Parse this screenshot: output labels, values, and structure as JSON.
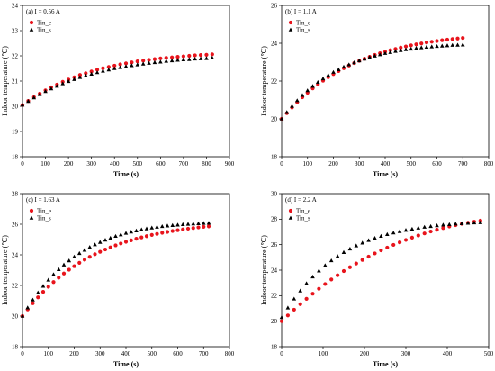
{
  "chart_data": [
    {
      "type": "scatter",
      "title": "(a) I = 0.56 A",
      "xlabel": "Time (s)",
      "ylabel": "Indoor temperature (℃)",
      "xlim": [
        0,
        900
      ],
      "ylim": [
        18,
        24
      ],
      "xticks": [
        0,
        100,
        200,
        300,
        400,
        500,
        600,
        700,
        800,
        900
      ],
      "yticks": [
        18,
        19,
        20,
        21,
        22,
        23,
        24
      ],
      "legend_position": "top-left",
      "x": [
        0,
        25,
        50,
        75,
        100,
        125,
        150,
        175,
        200,
        225,
        250,
        275,
        300,
        325,
        350,
        375,
        400,
        425,
        450,
        475,
        500,
        525,
        550,
        575,
        600,
        625,
        650,
        675,
        700,
        725,
        750,
        775,
        800,
        825
      ],
      "series": [
        {
          "name": "Tin_e",
          "color": "#e8141c",
          "marker": "circle",
          "values": [
            20.05,
            20.21,
            20.36,
            20.5,
            20.63,
            20.75,
            20.86,
            20.97,
            21.06,
            21.15,
            21.24,
            21.31,
            21.38,
            21.45,
            21.51,
            21.56,
            21.61,
            21.66,
            21.7,
            21.74,
            21.78,
            21.81,
            21.84,
            21.87,
            21.9,
            21.92,
            21.94,
            21.96,
            21.98,
            22.0,
            22.02,
            22.03,
            22.04,
            22.06
          ]
        },
        {
          "name": "Tin_s",
          "color": "#000000",
          "marker": "triangle",
          "values": [
            20.05,
            20.2,
            20.34,
            20.47,
            20.59,
            20.7,
            20.8,
            20.9,
            20.99,
            21.07,
            21.15,
            21.22,
            21.28,
            21.34,
            21.4,
            21.45,
            21.5,
            21.54,
            21.58,
            21.62,
            21.65,
            21.68,
            21.71,
            21.74,
            21.76,
            21.79,
            21.81,
            21.83,
            21.85,
            21.86,
            21.88,
            21.89,
            21.9,
            21.92
          ]
        }
      ]
    },
    {
      "type": "scatter",
      "title": "(b) I = 1.1 A",
      "xlabel": "Time (s)",
      "ylabel": "Indoor temperature (℃)",
      "xlim": [
        0,
        800
      ],
      "ylim": [
        18,
        26
      ],
      "xticks": [
        0,
        100,
        200,
        300,
        400,
        500,
        600,
        700,
        800
      ],
      "yticks": [
        18,
        20,
        22,
        24,
        26
      ],
      "legend_position": "top-left",
      "x": [
        0,
        20,
        40,
        60,
        80,
        100,
        120,
        140,
        160,
        180,
        200,
        220,
        240,
        260,
        280,
        300,
        320,
        340,
        360,
        380,
        400,
        420,
        440,
        460,
        480,
        500,
        520,
        540,
        560,
        580,
        600,
        620,
        640,
        660,
        680,
        700
      ],
      "series": [
        {
          "name": "Tin_e",
          "color": "#e8141c",
          "marker": "circle",
          "values": [
            20.0,
            20.3,
            20.6,
            20.88,
            21.14,
            21.38,
            21.61,
            21.82,
            22.02,
            22.2,
            22.37,
            22.53,
            22.68,
            22.82,
            22.95,
            23.07,
            23.18,
            23.28,
            23.38,
            23.47,
            23.55,
            23.63,
            23.7,
            23.77,
            23.83,
            23.89,
            23.94,
            23.99,
            24.04,
            24.08,
            24.12,
            24.16,
            24.19,
            24.22,
            24.25,
            24.28
          ]
        },
        {
          "name": "Tin_s",
          "color": "#000000",
          "marker": "triangle",
          "values": [
            20.0,
            20.35,
            20.67,
            20.97,
            21.25,
            21.5,
            21.73,
            21.94,
            22.13,
            22.31,
            22.47,
            22.61,
            22.75,
            22.87,
            22.98,
            23.08,
            23.17,
            23.26,
            23.33,
            23.4,
            23.47,
            23.52,
            23.58,
            23.62,
            23.67,
            23.7,
            23.74,
            23.77,
            23.8,
            23.82,
            23.84,
            23.86,
            23.88,
            23.9,
            23.91,
            23.92
          ]
        }
      ]
    },
    {
      "type": "scatter",
      "title": "(c) I = 1.63 A",
      "xlabel": "Time (s)",
      "ylabel": "Indoor temperature (℃)",
      "xlim": [
        0,
        800
      ],
      "ylim": [
        18,
        28
      ],
      "xticks": [
        0,
        100,
        200,
        300,
        400,
        500,
        600,
        700,
        800
      ],
      "yticks": [
        18,
        20,
        22,
        24,
        26,
        28
      ],
      "legend_position": "top-left",
      "x": [
        0,
        20,
        40,
        60,
        80,
        100,
        120,
        140,
        160,
        180,
        200,
        220,
        240,
        260,
        280,
        300,
        320,
        340,
        360,
        380,
        400,
        420,
        440,
        460,
        480,
        500,
        520,
        540,
        560,
        580,
        600,
        620,
        640,
        660,
        680,
        700,
        720
      ],
      "series": [
        {
          "name": "Tin_e",
          "color": "#e8141c",
          "marker": "circle",
          "values": [
            20.0,
            20.43,
            20.84,
            21.22,
            21.58,
            21.91,
            22.22,
            22.51,
            22.78,
            23.03,
            23.26,
            23.48,
            23.68,
            23.87,
            24.04,
            24.2,
            24.35,
            24.49,
            24.62,
            24.74,
            24.85,
            24.95,
            25.05,
            25.14,
            25.22,
            25.3,
            25.37,
            25.44,
            25.5,
            25.56,
            25.61,
            25.66,
            25.71,
            25.75,
            25.79,
            25.83,
            25.86
          ]
        },
        {
          "name": "Tin_s",
          "color": "#000000",
          "marker": "triangle",
          "values": [
            20.0,
            20.55,
            21.06,
            21.53,
            21.96,
            22.36,
            22.72,
            23.05,
            23.35,
            23.62,
            23.87,
            24.1,
            24.31,
            24.5,
            24.67,
            24.83,
            24.97,
            25.1,
            25.22,
            25.32,
            25.42,
            25.5,
            25.58,
            25.65,
            25.71,
            25.77,
            25.82,
            25.86,
            25.9,
            25.93,
            25.96,
            25.99,
            26.01,
            26.03,
            26.05,
            26.07,
            26.08
          ]
        }
      ]
    },
    {
      "type": "scatter",
      "title": "(d) I = 2.2 A",
      "xlabel": "Time (s)",
      "ylabel": "Indoor temperature (℃)",
      "xlim": [
        0,
        500
      ],
      "ylim": [
        18,
        30
      ],
      "xticks": [
        0,
        100,
        200,
        300,
        400,
        500
      ],
      "yticks": [
        18,
        20,
        22,
        24,
        26,
        28,
        30
      ],
      "legend_position": "top-left",
      "x": [
        0,
        15,
        30,
        45,
        60,
        75,
        90,
        105,
        120,
        135,
        150,
        165,
        180,
        195,
        210,
        225,
        240,
        255,
        270,
        285,
        300,
        315,
        330,
        345,
        360,
        375,
        390,
        405,
        420,
        435,
        450,
        465,
        480
      ],
      "series": [
        {
          "name": "Tin_e",
          "color": "#e8141c",
          "marker": "circle",
          "values": [
            20.0,
            20.45,
            20.9,
            21.33,
            21.75,
            22.15,
            22.54,
            22.91,
            23.27,
            23.6,
            23.93,
            24.23,
            24.52,
            24.8,
            25.06,
            25.31,
            25.55,
            25.77,
            25.98,
            26.18,
            26.37,
            26.55,
            26.72,
            26.88,
            27.03,
            27.17,
            27.3,
            27.42,
            27.53,
            27.63,
            27.72,
            27.8,
            27.88
          ]
        },
        {
          "name": "Tin_s",
          "color": "#000000",
          "marker": "triangle",
          "values": [
            20.3,
            21.05,
            21.75,
            22.38,
            22.96,
            23.48,
            23.95,
            24.37,
            24.75,
            25.09,
            25.4,
            25.67,
            25.92,
            26.14,
            26.34,
            26.51,
            26.67,
            26.81,
            26.93,
            27.04,
            27.14,
            27.23,
            27.31,
            27.38,
            27.44,
            27.5,
            27.55,
            27.59,
            27.63,
            27.66,
            27.69,
            27.72,
            27.74
          ]
        }
      ]
    }
  ]
}
